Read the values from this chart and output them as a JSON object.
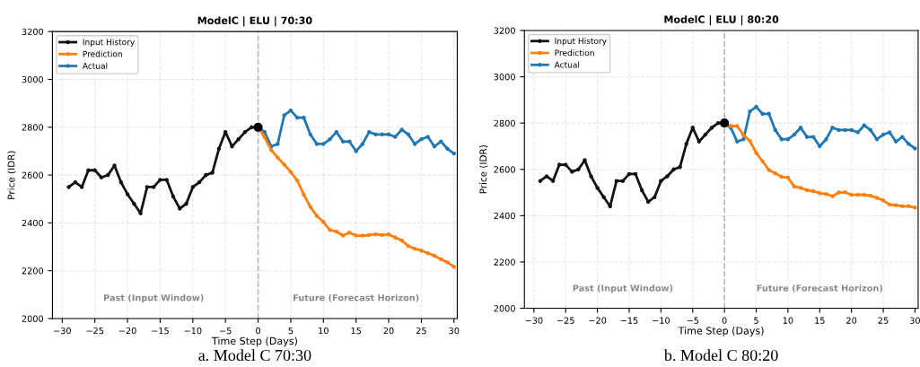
{
  "chart_data": [
    {
      "type": "line",
      "title": "ModelC | ELU | 70:30",
      "xlabel": "Time Step (Days)",
      "ylabel": "Price (IDR)",
      "xlim": [
        -31.5,
        30.5
      ],
      "xticks": [
        -30,
        -25,
        -20,
        -15,
        -10,
        -5,
        0,
        5,
        10,
        15,
        20,
        25,
        30
      ],
      "ylim": [
        2000,
        3200
      ],
      "yticks": [
        2000,
        2200,
        2400,
        2600,
        2800,
        3000,
        3200
      ],
      "grid": true,
      "legend": "top left",
      "marker": "circle",
      "line_style": "solid",
      "ref_lines": [
        {
          "axis": "x",
          "value": 0,
          "color": "#bbbbbb",
          "line_style": "dashed"
        }
      ],
      "annotations": [
        "Past (Input Window)",
        "Future (Forecast Horizon)",
        "a. Model C 70:30"
      ],
      "series": [
        {
          "name": "Input History",
          "color": "#111111",
          "x": [
            -29,
            -28,
            -27,
            -26,
            -25,
            -24,
            -23,
            -22,
            -21,
            -20,
            -19,
            -18,
            -17,
            -16,
            -15,
            -14,
            -13,
            -12,
            -11,
            -10,
            -9,
            -8,
            -7,
            -6,
            -5,
            -4,
            -3,
            -2,
            -1,
            0
          ],
          "values": [
            2550,
            2570,
            2550,
            2620,
            2620,
            2590,
            2600,
            2640,
            2570,
            2520,
            2480,
            2440,
            2550,
            2550,
            2580,
            2580,
            2510,
            2460,
            2480,
            2550,
            2570,
            2600,
            2610,
            2710,
            2780,
            2720,
            2750,
            2780,
            2800,
            2800
          ]
        },
        {
          "name": "Prediction",
          "color": "#ff7f0e",
          "x": [
            0,
            1,
            2,
            3,
            4,
            5,
            6,
            7,
            8,
            9,
            10,
            11,
            12,
            13,
            14,
            15,
            16,
            17,
            18,
            19,
            20,
            21,
            22,
            23,
            24,
            25,
            26,
            27,
            28,
            29,
            30
          ],
          "values": [
            2800,
            2758,
            2705,
            2673,
            2644,
            2613,
            2577,
            2518,
            2467,
            2429,
            2404,
            2370,
            2364,
            2347,
            2359,
            2347,
            2347,
            2349,
            2352,
            2349,
            2352,
            2339,
            2327,
            2303,
            2292,
            2284,
            2273,
            2263,
            2248,
            2235,
            2216
          ]
        },
        {
          "name": "Actual",
          "color": "#1f77b4",
          "x": [
            0,
            1,
            2,
            3,
            4,
            5,
            6,
            7,
            8,
            9,
            10,
            11,
            12,
            13,
            14,
            15,
            16,
            17,
            18,
            19,
            20,
            21,
            22,
            23,
            24,
            25,
            26,
            27,
            28,
            29,
            30
          ],
          "values": [
            2800,
            2780,
            2720,
            2730,
            2850,
            2870,
            2840,
            2840,
            2770,
            2730,
            2730,
            2750,
            2780,
            2740,
            2740,
            2700,
            2730,
            2780,
            2770,
            2770,
            2770,
            2760,
            2790,
            2770,
            2730,
            2750,
            2760,
            2720,
            2740,
            2710,
            2690
          ]
        },
        {
          "type": "scatter",
          "color": "#000000",
          "x": [
            0
          ],
          "values": [
            2800
          ]
        }
      ]
    },
    {
      "type": "line",
      "title": "ModelC | ELU | 80:20",
      "xlabel": "Time Step (Days)",
      "ylabel": "Price (IDR)",
      "xlim": [
        -31.5,
        30.5
      ],
      "xticks": [
        -30,
        -25,
        -20,
        -15,
        -10,
        -5,
        0,
        5,
        10,
        15,
        20,
        25,
        30
      ],
      "ylim": [
        2000,
        3200
      ],
      "yticks": [
        2000,
        2200,
        2400,
        2600,
        2800,
        3000,
        3200
      ],
      "grid": true,
      "legend": "top left",
      "marker": "circle",
      "line_style": "solid",
      "ref_lines": [
        {
          "axis": "x",
          "value": 0,
          "color": "#bbbbbb",
          "line_style": "dashed"
        }
      ],
      "annotations": [
        "Past (Input Window)",
        "Future (Forecast Horizon)",
        "b. Model C 80:20"
      ],
      "series": [
        {
          "name": "Input History",
          "color": "#111111",
          "x": [
            -29,
            -28,
            -27,
            -26,
            -25,
            -24,
            -23,
            -22,
            -21,
            -20,
            -19,
            -18,
            -17,
            -16,
            -15,
            -14,
            -13,
            -12,
            -11,
            -10,
            -9,
            -8,
            -7,
            -6,
            -5,
            -4,
            -3,
            -2,
            -1,
            0
          ],
          "values": [
            2550,
            2570,
            2550,
            2620,
            2620,
            2590,
            2600,
            2640,
            2570,
            2520,
            2480,
            2440,
            2550,
            2550,
            2580,
            2580,
            2510,
            2460,
            2480,
            2550,
            2570,
            2600,
            2610,
            2710,
            2780,
            2720,
            2750,
            2780,
            2800,
            2800
          ]
        },
        {
          "name": "Prediction",
          "color": "#ff7f0e",
          "x": [
            0,
            1,
            2,
            3,
            4,
            5,
            6,
            7,
            8,
            9,
            10,
            11,
            12,
            13,
            14,
            15,
            16,
            17,
            18,
            19,
            20,
            21,
            22,
            23,
            24,
            25,
            26,
            27,
            28,
            29,
            30
          ],
          "values": [
            2800,
            2787,
            2787,
            2748,
            2723,
            2671,
            2635,
            2597,
            2583,
            2568,
            2564,
            2526,
            2520,
            2510,
            2506,
            2497,
            2494,
            2484,
            2500,
            2501,
            2490,
            2490,
            2490,
            2486,
            2477,
            2466,
            2448,
            2445,
            2441,
            2441,
            2435
          ]
        },
        {
          "name": "Actual",
          "color": "#1f77b4",
          "x": [
            0,
            1,
            2,
            3,
            4,
            5,
            6,
            7,
            8,
            9,
            10,
            11,
            12,
            13,
            14,
            15,
            16,
            17,
            18,
            19,
            20,
            21,
            22,
            23,
            24,
            25,
            26,
            27,
            28,
            29,
            30
          ],
          "values": [
            2800,
            2780,
            2720,
            2730,
            2850,
            2870,
            2840,
            2840,
            2770,
            2730,
            2730,
            2750,
            2780,
            2740,
            2740,
            2700,
            2730,
            2780,
            2770,
            2770,
            2770,
            2760,
            2790,
            2770,
            2730,
            2750,
            2760,
            2720,
            2740,
            2710,
            2690
          ]
        },
        {
          "type": "scatter",
          "color": "#000000",
          "x": [
            0
          ],
          "values": [
            2800
          ]
        }
      ]
    }
  ]
}
